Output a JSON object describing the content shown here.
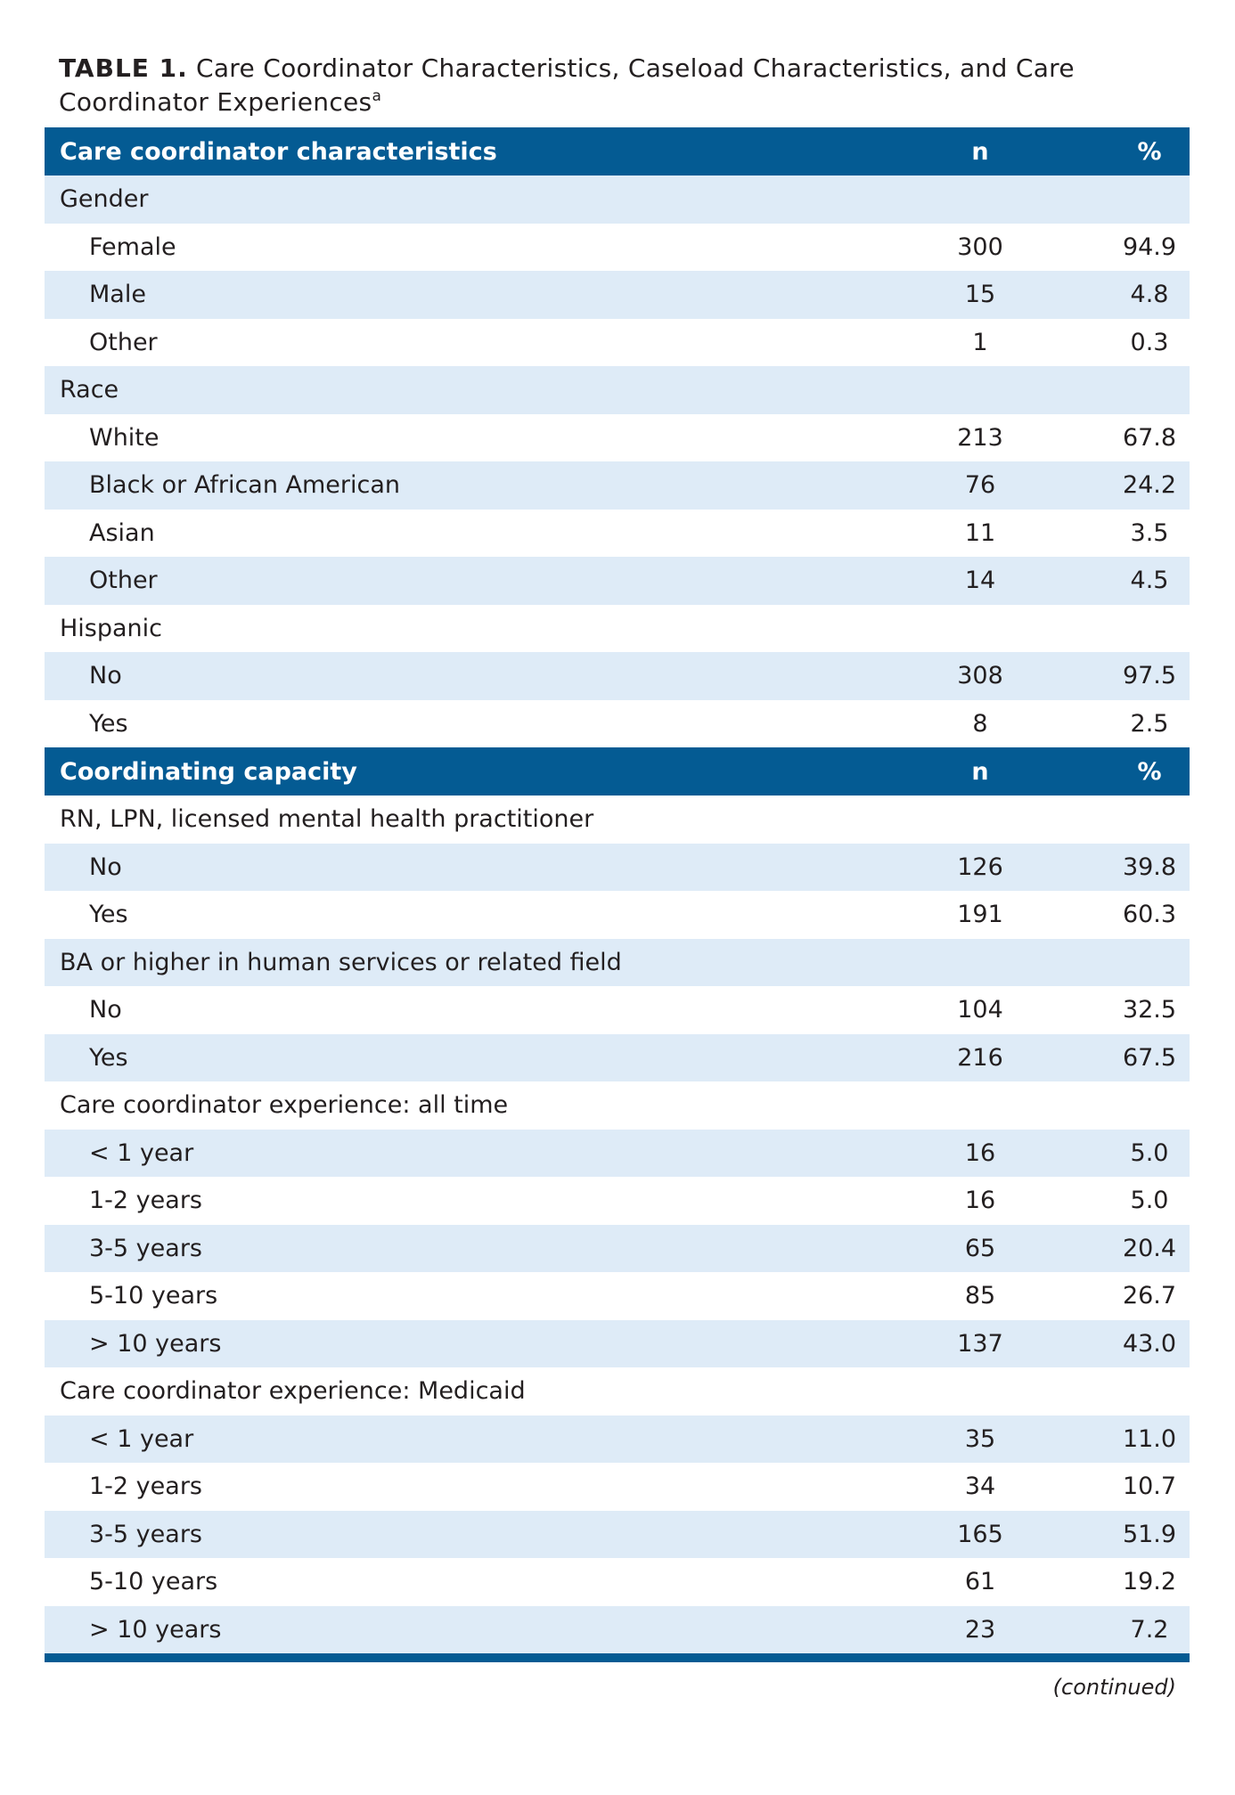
{
  "caption": {
    "label": "TABLE 1.",
    "text": " Care Coordinator Characteristics, Caseload Characteristics, and Care Coordinator Experiences",
    "footnote_mark": "a"
  },
  "rows": [
    {
      "type": "header",
      "label": "Care coordinator characteristics",
      "n": "n",
      "pct": "%"
    },
    {
      "type": "group",
      "shade": true,
      "label": "Gender",
      "n": "",
      "pct": ""
    },
    {
      "type": "item",
      "shade": false,
      "label": "Female",
      "n": "300",
      "pct": "94.9"
    },
    {
      "type": "item",
      "shade": true,
      "label": "Male",
      "n": "15",
      "pct": "4.8"
    },
    {
      "type": "item",
      "shade": false,
      "label": "Other",
      "n": "1",
      "pct": "0.3"
    },
    {
      "type": "group",
      "shade": true,
      "label": "Race",
      "n": "",
      "pct": ""
    },
    {
      "type": "item",
      "shade": false,
      "label": "White",
      "n": "213",
      "pct": "67.8"
    },
    {
      "type": "item",
      "shade": true,
      "label": "Black or African American",
      "n": "76",
      "pct": "24.2"
    },
    {
      "type": "item",
      "shade": false,
      "label": "Asian",
      "n": "11",
      "pct": "3.5"
    },
    {
      "type": "item",
      "shade": true,
      "label": "Other",
      "n": "14",
      "pct": "4.5"
    },
    {
      "type": "group",
      "shade": false,
      "label": "Hispanic",
      "n": "",
      "pct": ""
    },
    {
      "type": "item",
      "shade": true,
      "label": "No",
      "n": "308",
      "pct": "97.5"
    },
    {
      "type": "item",
      "shade": false,
      "label": "Yes",
      "n": "8",
      "pct": "2.5"
    },
    {
      "type": "header",
      "label": "Coordinating capacity",
      "n": "n",
      "pct": "%"
    },
    {
      "type": "group",
      "shade": false,
      "label": "RN, LPN, licensed mental health practitioner",
      "n": "",
      "pct": ""
    },
    {
      "type": "item",
      "shade": true,
      "label": "No",
      "n": "126",
      "pct": "39.8"
    },
    {
      "type": "item",
      "shade": false,
      "label": "Yes",
      "n": "191",
      "pct": "60.3"
    },
    {
      "type": "group",
      "shade": true,
      "label": "BA or higher in human services or related field",
      "n": "",
      "pct": ""
    },
    {
      "type": "item",
      "shade": false,
      "label": "No",
      "n": "104",
      "pct": "32.5"
    },
    {
      "type": "item",
      "shade": true,
      "label": "Yes",
      "n": "216",
      "pct": "67.5"
    },
    {
      "type": "group",
      "shade": false,
      "label": "Care coordinator experience: all time",
      "n": "",
      "pct": ""
    },
    {
      "type": "item",
      "shade": true,
      "label": "< 1 year",
      "n": "16",
      "pct": "5.0"
    },
    {
      "type": "item",
      "shade": false,
      "label": "1-2 years",
      "n": "16",
      "pct": "5.0"
    },
    {
      "type": "item",
      "shade": true,
      "label": "3-5 years",
      "n": "65",
      "pct": "20.4"
    },
    {
      "type": "item",
      "shade": false,
      "label": "5-10 years",
      "n": "85",
      "pct": "26.7"
    },
    {
      "type": "item",
      "shade": true,
      "label": "> 10 years",
      "n": "137",
      "pct": "43.0"
    },
    {
      "type": "group",
      "shade": false,
      "label": "Care coordinator experience: Medicaid",
      "n": "",
      "pct": ""
    },
    {
      "type": "item",
      "shade": true,
      "label": "< 1 year",
      "n": "35",
      "pct": "11.0"
    },
    {
      "type": "item",
      "shade": false,
      "label": "1-2 years",
      "n": "34",
      "pct": "10.7"
    },
    {
      "type": "item",
      "shade": true,
      "label": "3-5 years",
      "n": "165",
      "pct": "51.9"
    },
    {
      "type": "item",
      "shade": false,
      "label": "5-10 years",
      "n": "61",
      "pct": "19.2"
    },
    {
      "type": "item",
      "shade": true,
      "label": "> 10 years",
      "n": "23",
      "pct": "7.2"
    }
  ],
  "continued": "(continued)",
  "colors": {
    "header": "#045b93",
    "shade": "#deebf7"
  }
}
